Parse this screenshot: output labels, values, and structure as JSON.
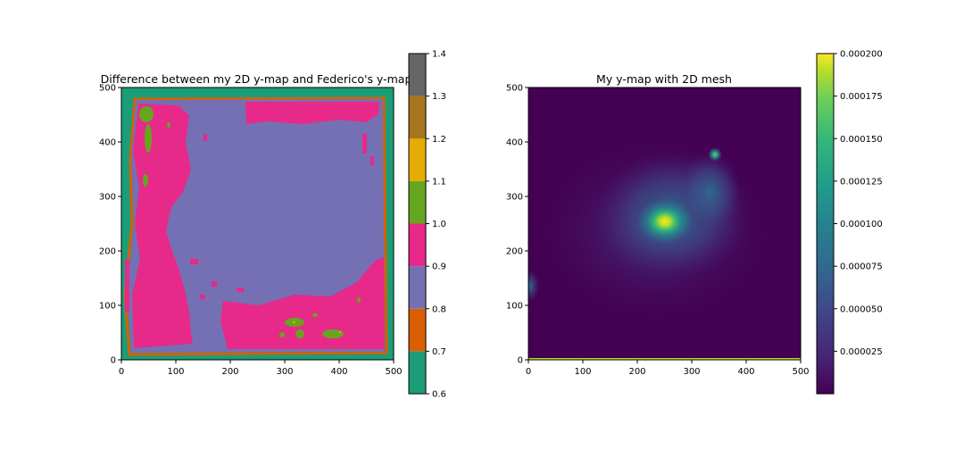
{
  "chart_data": [
    {
      "type": "heatmap",
      "title": "Difference between my 2D y-map and Federico's y-map",
      "xlabel": "",
      "ylabel": "",
      "xlim": [
        0,
        500
      ],
      "ylim": [
        0,
        500
      ],
      "x_ticks": [
        0,
        100,
        200,
        300,
        400,
        500
      ],
      "y_ticks": [
        0,
        100,
        200,
        300,
        400,
        500
      ],
      "x_tick_labels": [
        "0",
        "100",
        "200",
        "300",
        "400",
        "500"
      ],
      "y_tick_labels": [
        "0",
        "100",
        "200",
        "300",
        "400",
        "500"
      ],
      "colormap": "Dark2 (discrete)",
      "colorbar": {
        "range": [
          0.6,
          1.4
        ],
        "ticks": [
          0.6,
          0.7,
          0.8,
          0.9,
          1.0,
          1.1,
          1.2,
          1.3,
          1.4
        ],
        "tick_labels": [
          "0.6",
          "0.7",
          "0.8",
          "0.9",
          "1.0",
          "1.1",
          "1.2",
          "1.3",
          "1.4"
        ],
        "bins": [
          {
            "from": 0.6,
            "to": 0.7,
            "color": "#1b9e77"
          },
          {
            "from": 0.7,
            "to": 0.8,
            "color": "#d95f02"
          },
          {
            "from": 0.8,
            "to": 0.9,
            "color": "#7570b3"
          },
          {
            "from": 0.9,
            "to": 1.0,
            "color": "#e7298a"
          },
          {
            "from": 1.0,
            "to": 1.1,
            "color": "#66a61e"
          },
          {
            "from": 1.1,
            "to": 1.2,
            "color": "#e6ab02"
          },
          {
            "from": 1.2,
            "to": 1.3,
            "color": "#a6761d"
          },
          {
            "from": 1.3,
            "to": 1.4,
            "color": "#666666"
          }
        ]
      },
      "regions": [
        {
          "value_bin": "0.6-0.7",
          "description_color": "#1b9e77",
          "x": [
            0,
            500
          ],
          "y": [
            0,
            500
          ],
          "role": "background border"
        },
        {
          "value_bin": "0.8-0.9",
          "description_color": "#7570b3",
          "x": [
            25,
            475
          ],
          "y": [
            20,
            475
          ],
          "role": "interior"
        },
        {
          "value_bin": "0.9-1.0",
          "description_color": "#e7298a",
          "x": [
            25,
            130
          ],
          "y": [
            30,
            470
          ],
          "role": "left band"
        },
        {
          "value_bin": "0.9-1.0",
          "description_color": "#e7298a",
          "x": [
            230,
            470
          ],
          "y": [
            430,
            475
          ],
          "role": "top band"
        },
        {
          "value_bin": "0.9-1.0",
          "description_color": "#e7298a",
          "x": [
            190,
            470
          ],
          "y": [
            20,
            180
          ],
          "role": "bottom-right band"
        },
        {
          "value_bin": "1.0-1.1",
          "description_color": "#66a61e",
          "x": [
            30,
            60
          ],
          "y": [
            380,
            470
          ],
          "role": "small patches"
        },
        {
          "value_bin": "1.0-1.1",
          "description_color": "#66a61e",
          "x": [
            290,
            420
          ],
          "y": [
            35,
            75
          ],
          "role": "small patches"
        }
      ]
    },
    {
      "type": "heatmap",
      "title": "My y-map with 2D mesh",
      "xlabel": "",
      "ylabel": "",
      "xlim": [
        0,
        500
      ],
      "ylim": [
        0,
        500
      ],
      "x_ticks": [
        0,
        100,
        200,
        300,
        400,
        500
      ],
      "y_ticks": [
        0,
        100,
        200,
        300,
        400,
        500
      ],
      "x_tick_labels": [
        "0",
        "100",
        "200",
        "300",
        "400",
        "500"
      ],
      "y_tick_labels": [
        "0",
        "100",
        "200",
        "300",
        "400",
        "500"
      ],
      "colormap": "viridis",
      "colorbar": {
        "range": [
          0.0,
          0.0002
        ],
        "ticks": [
          2.5e-05,
          5e-05,
          7.5e-05,
          0.0001,
          0.000125,
          0.00015,
          0.000175,
          0.0002
        ],
        "tick_labels": [
          "0.000025",
          "0.000050",
          "0.000075",
          "0.000100",
          "0.000125",
          "0.000150",
          "0.000175",
          "0.000200"
        ]
      },
      "peaks": [
        {
          "x": 250,
          "y": 250,
          "value": 0.0002
        },
        {
          "x": 345,
          "y": 378,
          "value": 0.00012
        },
        {
          "x": 5,
          "y": 130,
          "value": 6e-05
        }
      ]
    }
  ]
}
